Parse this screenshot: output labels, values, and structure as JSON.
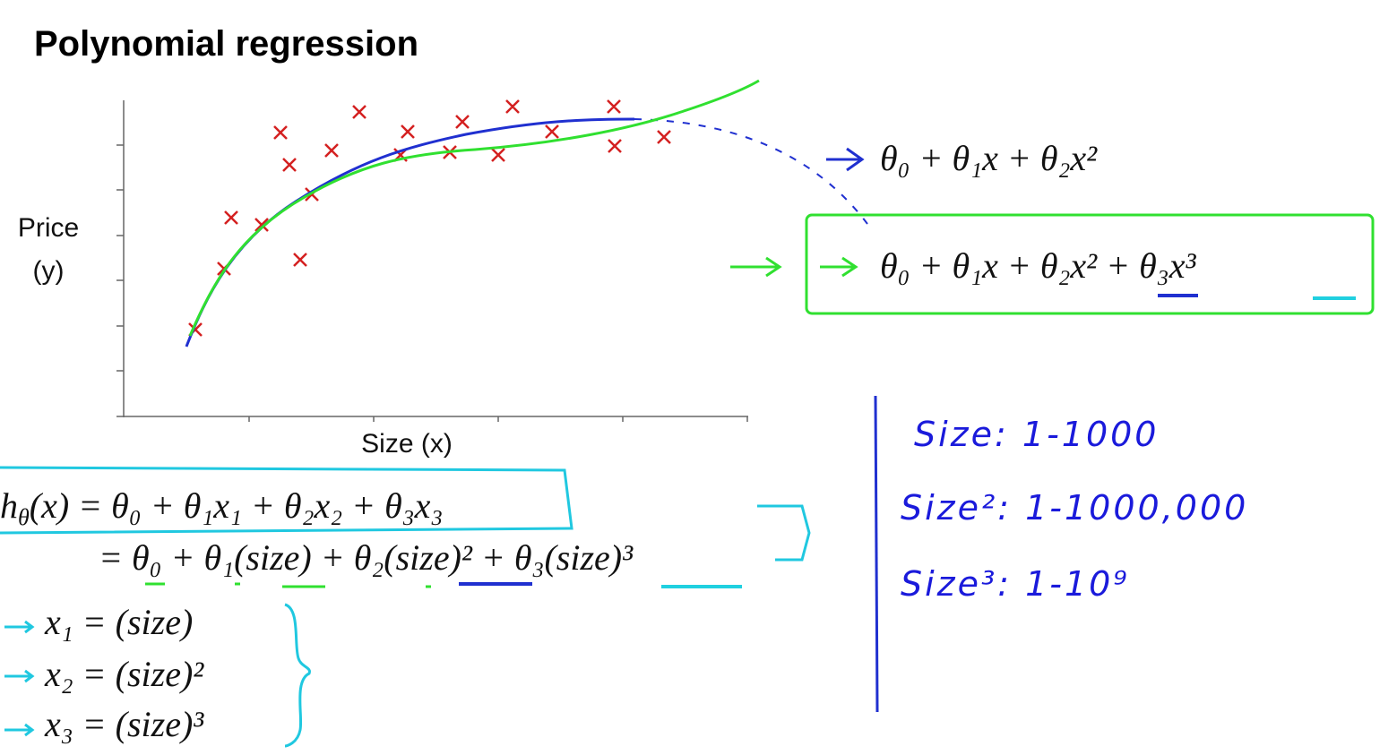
{
  "header": {
    "title": "Polynomial regression"
  },
  "plot": {
    "y_label": [
      "Price",
      "(y)"
    ],
    "x_label": "Size (x)"
  },
  "models": {
    "quadratic": "θ₀ + θ₁x + θ₂x²",
    "cubic": "θ₀ + θ₁x + θ₂x² + θ₃x³"
  },
  "hypothesis": {
    "h": "h",
    "h_sub": "θ",
    "line1": "(x) = θ₀ + θ₁x₁ + θ₂x₂ + θ₃x₃",
    "line2": "= θ₀ + θ₁(size) + θ₂(size)² + θ₃(size)³"
  },
  "features": [
    "x₁ = (size)",
    "x₂ = (size)²",
    "x₃ = (size)³"
  ],
  "notes": [
    "Size: 1-1000",
    "Size²: 1-1000,000",
    "Size³: 1-10⁹"
  ]
}
